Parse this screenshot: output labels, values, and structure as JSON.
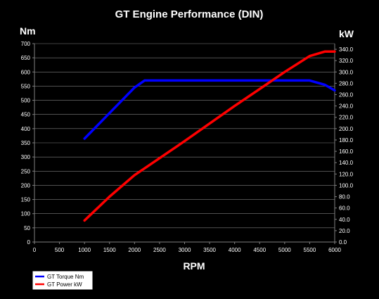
{
  "chart_data": {
    "type": "line",
    "title": "GT Engine Performance (DIN)",
    "xlabel": "RPM",
    "ylabel_left": "Nm",
    "ylabel_right": "kW",
    "xlim": [
      0,
      6000
    ],
    "ylim_left": [
      0,
      700
    ],
    "ylim_right": [
      0,
      350
    ],
    "x_ticks": [
      "0",
      "500",
      "1000",
      "1500",
      "2000",
      "2500",
      "3000",
      "3500",
      "4000",
      "4500",
      "5000",
      "5500",
      "6000"
    ],
    "y_left_ticks": [
      "0",
      "50",
      "100",
      "150",
      "200",
      "250",
      "300",
      "350",
      "400",
      "450",
      "500",
      "550",
      "600",
      "650",
      "700"
    ],
    "y_right_ticks": [
      "0.0",
      "20.0",
      "40.0",
      "60.0",
      "80.0",
      "100.0",
      "120.0",
      "140.0",
      "160.0",
      "180.0",
      "200.0",
      "220.0",
      "240.0",
      "260.0",
      "280.0",
      "300.0",
      "320.0",
      "340.0"
    ],
    "grid": "horizontal",
    "legend_position": "bottom-left",
    "series": [
      {
        "name": "GT Torque Nm",
        "axis": "left",
        "color": "#0000ff",
        "x": [
          1000,
          1500,
          2000,
          2200,
          3000,
          4000,
          5000,
          5500,
          5800,
          6000
        ],
        "values": [
          365,
          455,
          545,
          570,
          570,
          570,
          570,
          570,
          555,
          535
        ]
      },
      {
        "name": "GT Power kW",
        "axis": "right",
        "color": "#ff0000",
        "x": [
          1000,
          1500,
          2000,
          2200,
          3000,
          4000,
          4500,
          5000,
          5500,
          5800,
          6000
        ],
        "values": [
          38,
          80,
          118,
          130,
          178,
          240,
          270,
          300,
          328,
          336,
          336
        ]
      }
    ]
  }
}
